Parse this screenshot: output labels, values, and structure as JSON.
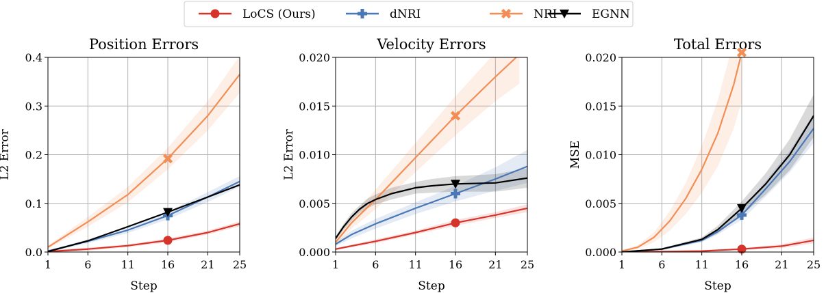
{
  "chart_data": [
    {
      "type": "line",
      "title": "Position Errors",
      "xlabel": "Step",
      "ylabel": "L2 Error",
      "xlim": [
        1,
        25
      ],
      "ylim": [
        0,
        0.4
      ],
      "xticks": [
        1,
        6,
        11,
        16,
        21,
        25
      ],
      "yticks": [
        0.0,
        0.1,
        0.2,
        0.3,
        0.4
      ],
      "ytick_labels": [
        "0.0",
        "0.1",
        "0.2",
        "0.3",
        "0.4"
      ],
      "marker_step": 16,
      "series": [
        {
          "name": "LoCS (Ours)",
          "x": [
            1,
            6,
            11,
            16,
            21,
            25
          ],
          "y": [
            0.001,
            0.006,
            0.013,
            0.024,
            0.04,
            0.058
          ],
          "band": [
            0.002,
            0.003,
            0.003,
            0.004,
            0.004,
            0.005
          ]
        },
        {
          "name": "dNRI",
          "x": [
            1,
            6,
            11,
            16,
            21,
            25
          ],
          "y": [
            0.002,
            0.022,
            0.045,
            0.075,
            0.113,
            0.145
          ],
          "band": [
            0.002,
            0.004,
            0.006,
            0.008,
            0.01,
            0.011
          ]
        },
        {
          "name": "NRI",
          "x": [
            1,
            6,
            11,
            16,
            21,
            25
          ],
          "y": [
            0.01,
            0.062,
            0.118,
            0.192,
            0.28,
            0.365
          ],
          "band": [
            0.003,
            0.01,
            0.016,
            0.022,
            0.03,
            0.038
          ]
        },
        {
          "name": "EGNN",
          "x": [
            1,
            6,
            11,
            16,
            21,
            25
          ],
          "y": [
            0.001,
            0.023,
            0.052,
            0.082,
            0.113,
            0.138
          ],
          "band": [
            0.0,
            0.0,
            0.0,
            0.0,
            0.0,
            0.0
          ]
        }
      ]
    },
    {
      "type": "line",
      "title": "Velocity Errors",
      "xlabel": "Step",
      "ylabel": "L2 Error",
      "xlim": [
        1,
        25
      ],
      "ylim": [
        0,
        0.02
      ],
      "xticks": [
        1,
        6,
        11,
        16,
        21,
        25
      ],
      "yticks": [
        0.0,
        0.005,
        0.01,
        0.015,
        0.02
      ],
      "ytick_labels": [
        "0.000",
        "0.005",
        "0.010",
        "0.015",
        "0.020"
      ],
      "marker_step": 16,
      "series": [
        {
          "name": "LoCS (Ours)",
          "x": [
            1,
            6,
            11,
            16,
            21,
            25
          ],
          "y": [
            0.0003,
            0.0011,
            0.002,
            0.003,
            0.0038,
            0.0045
          ],
          "band": [
            0.0001,
            0.0002,
            0.0002,
            0.0003,
            0.0003,
            0.0004
          ]
        },
        {
          "name": "dNRI",
          "x": [
            1,
            3,
            6,
            11,
            16,
            21,
            25
          ],
          "y": [
            0.0008,
            0.0018,
            0.0029,
            0.0045,
            0.006,
            0.0075,
            0.0088
          ],
          "band": [
            0.0002,
            0.0004,
            0.0005,
            0.0006,
            0.0008,
            0.0012,
            0.0017
          ]
        },
        {
          "name": "NRI",
          "x": [
            1,
            3,
            6,
            11,
            16,
            21,
            24
          ],
          "y": [
            0.001,
            0.003,
            0.0054,
            0.0097,
            0.014,
            0.018,
            0.0203
          ],
          "band": [
            0.0003,
            0.0006,
            0.001,
            0.0015,
            0.002,
            0.0025,
            0.003
          ]
        },
        {
          "name": "EGNN",
          "x": [
            1,
            2,
            3,
            4,
            5,
            6,
            8,
            11,
            13,
            16,
            21,
            25
          ],
          "y": [
            0.0014,
            0.0026,
            0.0036,
            0.0044,
            0.005,
            0.0054,
            0.006,
            0.0066,
            0.0068,
            0.007,
            0.0071,
            0.0076
          ],
          "band": [
            0.0002,
            0.0003,
            0.0004,
            0.0004,
            0.0005,
            0.0005,
            0.0006,
            0.0006,
            0.0007,
            0.0008,
            0.0009,
            0.001
          ]
        }
      ]
    },
    {
      "type": "line",
      "title": "Total Errors",
      "xlabel": "Step",
      "ylabel": "MSE",
      "xlim": [
        1,
        25
      ],
      "ylim": [
        0,
        0.02
      ],
      "xticks": [
        1,
        6,
        11,
        16,
        21,
        25
      ],
      "yticks": [
        0.0,
        0.005,
        0.01,
        0.015,
        0.02
      ],
      "ytick_labels": [
        "0.000",
        "0.005",
        "0.010",
        "0.015",
        "0.020"
      ],
      "marker_step": 16,
      "series": [
        {
          "name": "LoCS (Ours)",
          "x": [
            1,
            6,
            11,
            16,
            21,
            25
          ],
          "y": [
            0.0,
            5e-05,
            0.0001,
            0.0003,
            0.0006,
            0.0012
          ],
          "band": [
            0.0,
            2e-05,
            5e-05,
            0.0001,
            0.0002,
            0.0003
          ]
        },
        {
          "name": "dNRI",
          "x": [
            1,
            6,
            11,
            13,
            16,
            19,
            22,
            25
          ],
          "y": [
            0.0,
            0.0003,
            0.0012,
            0.0021,
            0.0038,
            0.0065,
            0.0093,
            0.0127
          ],
          "band": [
            0.0,
            0.0001,
            0.0002,
            0.0003,
            0.0005,
            0.0008,
            0.0011,
            0.0015
          ]
        },
        {
          "name": "NRI",
          "x": [
            1,
            3,
            5,
            7,
            9,
            11,
            13,
            15,
            16
          ],
          "y": [
            0.0001,
            0.0005,
            0.0015,
            0.0032,
            0.0055,
            0.0085,
            0.0122,
            0.0172,
            0.0205
          ],
          "band": [
            0.0001,
            0.0002,
            0.0005,
            0.001,
            0.0016,
            0.0024,
            0.0034,
            0.0045,
            0.005
          ]
        },
        {
          "name": "EGNN",
          "x": [
            1,
            6,
            11,
            13,
            16,
            19,
            22,
            25
          ],
          "y": [
            0.0,
            0.0003,
            0.0013,
            0.0023,
            0.0045,
            0.007,
            0.01,
            0.014
          ],
          "band": [
            0.0,
            0.0001,
            0.0002,
            0.0004,
            0.0007,
            0.0011,
            0.0016,
            0.0022
          ]
        }
      ]
    }
  ],
  "legend": {
    "entries": [
      "LoCS (Ours)",
      "dNRI",
      "NRI",
      "EGNN"
    ]
  },
  "colors": {
    "LoCS (Ours)": "#d6332a",
    "dNRI": "#4a78b6",
    "NRI": "#f28e55",
    "EGNN": "#000000",
    "grid": "#b0b0b0"
  },
  "markers": {
    "LoCS (Ours)": "circle",
    "dNRI": "plus",
    "NRI": "x",
    "EGNN": "triangle-down"
  }
}
